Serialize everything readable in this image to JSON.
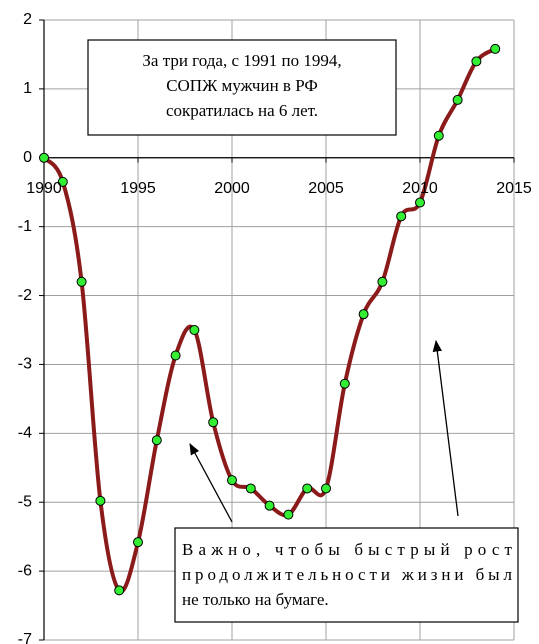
{
  "chart_data": {
    "type": "line",
    "x": [
      1990,
      1991,
      1992,
      1993,
      1994,
      1995,
      1996,
      1997,
      1998,
      1999,
      2000,
      2001,
      2002,
      2003,
      2004,
      2005,
      2006,
      2007,
      2008,
      2009,
      2010,
      2011,
      2012,
      2013,
      2014
    ],
    "series": [
      {
        "color": "#8b1a1a",
        "marker_color": "#33ee33",
        "values": [
          0,
          -0.35,
          -1.8,
          -4.98,
          -6.28,
          -5.58,
          -4.1,
          -2.87,
          -2.5,
          -3.84,
          -4.68,
          -4.8,
          -5.05,
          -5.18,
          -4.8,
          -4.8,
          -3.28,
          -2.27,
          -1.8,
          -0.85,
          -0.65,
          0.32,
          0.84,
          1.4,
          1.58
        ]
      }
    ],
    "xlim": [
      1990,
      2015
    ],
    "xticks": [
      1990,
      1995,
      2000,
      2005,
      2010,
      2015
    ],
    "ylim": [
      -7,
      2
    ],
    "yticks": [
      -7,
      -6,
      -5,
      -4,
      -3,
      -2,
      -1,
      0,
      1,
      2
    ],
    "grid": true,
    "annotations": [
      {
        "lines": [
          "За три года, с 1991 по 1994,",
          "СОПЖ мужчин в РФ",
          "сократилась на 6 лет."
        ]
      },
      {
        "lines": [
          "Важно, чтобы быстрый рост",
          "продолжительности жизни был",
          "не только на бумаге."
        ]
      }
    ]
  }
}
